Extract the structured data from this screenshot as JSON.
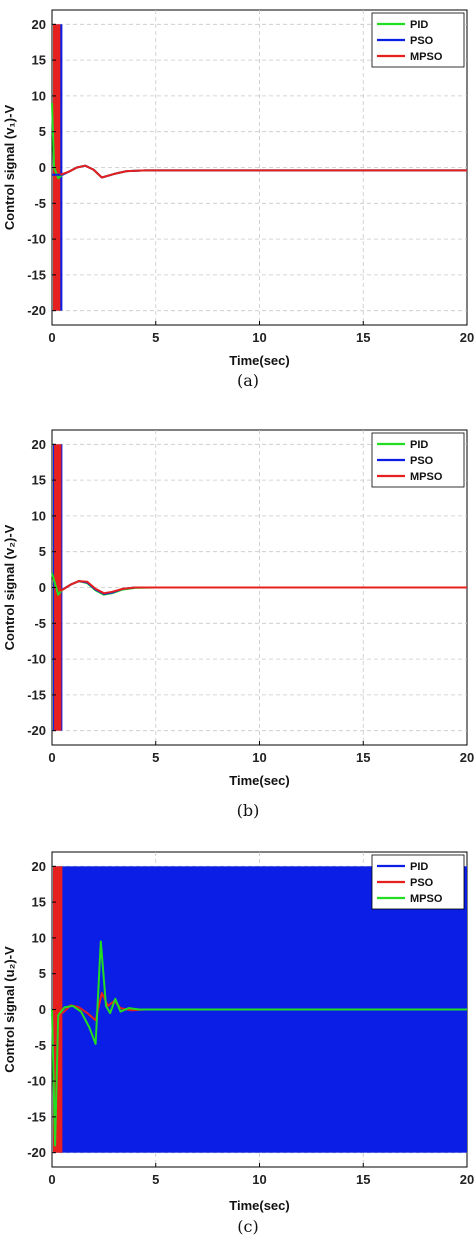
{
  "colors": {
    "green": "#22dd22",
    "blue": "#0a1ee6",
    "red": "#e6201e"
  },
  "chart_data": [
    {
      "type": "line",
      "caption": "(a)",
      "xlabel": "Time(sec)",
      "ylabel": "Control signal (v₁)-V",
      "xlim": [
        0,
        20
      ],
      "ylim": [
        -22,
        22
      ],
      "xticks": [
        0,
        5,
        10,
        15,
        20
      ],
      "yticks": [
        20,
        15,
        10,
        5,
        0,
        -5,
        -10,
        -15,
        -20
      ],
      "grid": true,
      "legend": "top-right",
      "series": [
        {
          "name": "PID",
          "color": "#22dd22",
          "x": [
            0,
            0.1,
            0.3,
            0.5,
            0.8,
            1.2,
            1.6,
            2.0,
            2.4,
            3.0,
            3.6,
            4.5,
            5.5,
            8,
            12,
            16,
            20
          ],
          "y": [
            9,
            0,
            -1.5,
            -1.0,
            -0.6,
            0.0,
            0.25,
            -0.3,
            -1.4,
            -0.9,
            -0.5,
            -0.4,
            -0.4,
            -0.4,
            -0.4,
            -0.4,
            -0.4
          ],
          "band": {
            "x0": 0.05,
            "x1": 0.12,
            "y0": -20,
            "y1": 20
          }
        },
        {
          "name": "PSO",
          "color": "#0a1ee6",
          "x": [
            0,
            0.5,
            0.8,
            1.2,
            1.6,
            2.0,
            2.4,
            3.0,
            3.6,
            4.5,
            5.5,
            8,
            12,
            16,
            20
          ],
          "y": [
            -1,
            -1.0,
            -0.6,
            0.0,
            0.25,
            -0.3,
            -1.4,
            -0.9,
            -0.5,
            -0.4,
            -0.4,
            -0.4,
            -0.4,
            -0.4,
            -0.4
          ],
          "band": {
            "x0": 0.12,
            "x1": 0.5,
            "y0": -20,
            "y1": 20
          }
        },
        {
          "name": "MPSO",
          "color": "#e6201e",
          "x": [
            0.4,
            0.8,
            1.2,
            1.6,
            2.0,
            2.4,
            3.0,
            3.6,
            4.5,
            5.5,
            8,
            12,
            16,
            20
          ],
          "y": [
            -1.0,
            -0.6,
            0.0,
            0.25,
            -0.3,
            -1.4,
            -0.9,
            -0.5,
            -0.4,
            -0.4,
            -0.4,
            -0.4,
            -0.4,
            -0.4
          ],
          "band": {
            "x0": 0.05,
            "x1": 0.4,
            "y0": -20,
            "y1": 20
          }
        }
      ]
    },
    {
      "type": "line",
      "caption": "(b)",
      "xlabel": "Time(sec)",
      "ylabel": "Control signal (v₂)-V",
      "xlim": [
        0,
        20
      ],
      "ylim": [
        -22,
        22
      ],
      "xticks": [
        0,
        5,
        10,
        15,
        20
      ],
      "yticks": [
        20,
        15,
        10,
        5,
        0,
        -5,
        -10,
        -15,
        -20
      ],
      "grid": true,
      "legend": "top-right",
      "series": [
        {
          "name": "PID",
          "color": "#22dd22",
          "x": [
            0,
            0.3,
            0.5,
            0.9,
            1.3,
            1.7,
            2.1,
            2.5,
            2.9,
            3.4,
            4.0,
            5,
            8,
            12,
            16,
            20
          ],
          "y": [
            2,
            -1.0,
            -0.3,
            0.4,
            0.9,
            0.6,
            -0.4,
            -1.0,
            -0.8,
            -0.3,
            -0.05,
            0,
            0,
            0,
            0,
            0
          ],
          "band": {
            "x0": 0.05,
            "x1": 0.2,
            "y0": -20,
            "y1": 20
          }
        },
        {
          "name": "PSO",
          "color": "#0a1ee6",
          "x": [
            0.5,
            0.9,
            1.3,
            1.7,
            2.1,
            2.5,
            2.9,
            3.4,
            4.0,
            5,
            8,
            12,
            16,
            20
          ],
          "y": [
            -0.3,
            0.4,
            0.9,
            0.7,
            -0.3,
            -0.9,
            -0.7,
            -0.2,
            0,
            0,
            0,
            0,
            0,
            0
          ],
          "band": {
            "x0": 0.05,
            "x1": 0.5,
            "y0": -20,
            "y1": 20
          }
        },
        {
          "name": "MPSO",
          "color": "#e6201e",
          "x": [
            0.4,
            0.9,
            1.3,
            1.7,
            2.1,
            2.5,
            2.9,
            3.4,
            4.0,
            5,
            8,
            12,
            16,
            20
          ],
          "y": [
            -0.5,
            0.4,
            0.9,
            0.8,
            -0.2,
            -0.8,
            -0.6,
            -0.2,
            0,
            0,
            0,
            0,
            0,
            0
          ],
          "band": {
            "x0": 0.1,
            "x1": 0.45,
            "y0": -20,
            "y1": 20
          }
        }
      ]
    },
    {
      "type": "line",
      "caption": "(c)",
      "xlabel": "Time(sec)",
      "ylabel": "Control signal (u₂)-V",
      "xlim": [
        0,
        20
      ],
      "ylim": [
        -22,
        22
      ],
      "xticks": [
        0,
        5,
        10,
        15,
        20
      ],
      "yticks": [
        20,
        15,
        10,
        5,
        0,
        -5,
        -10,
        -15,
        -20
      ],
      "grid": true,
      "legend": "top-right",
      "series": [
        {
          "name": "PID",
          "color": "#0a1ee6",
          "x": [],
          "y": [],
          "band": {
            "x0": 0.05,
            "x1": 20,
            "y0": -20,
            "y1": 20
          }
        },
        {
          "name": "PSO",
          "color": "#e6201e",
          "x": [
            0.5,
            0.9,
            1.3,
            1.7,
            2.1,
            2.4,
            2.7,
            3.0,
            3.3,
            3.8,
            4.5,
            6,
            10,
            15,
            20
          ],
          "y": [
            -0.5,
            0.6,
            0.3,
            -0.5,
            -1.5,
            2.3,
            0.5,
            1.2,
            0.2,
            -0.1,
            0,
            0,
            0,
            0,
            0
          ],
          "band": {
            "x0": 0.05,
            "x1": 0.5,
            "y0": -20,
            "y1": 20
          }
        },
        {
          "name": "MPSO",
          "color": "#22dd22",
          "x": [
            0,
            0.15,
            0.3,
            0.6,
            1.0,
            1.4,
            1.8,
            2.1,
            2.35,
            2.6,
            2.8,
            3.05,
            3.3,
            3.7,
            4.2,
            5,
            8,
            12,
            16,
            20
          ],
          "y": [
            0,
            -19,
            -0.8,
            0.3,
            0.5,
            -0.3,
            -2.5,
            -4.8,
            9.5,
            0.5,
            -0.5,
            1.5,
            -0.3,
            0.2,
            0,
            0,
            0,
            0,
            0,
            0
          ]
        }
      ]
    }
  ]
}
